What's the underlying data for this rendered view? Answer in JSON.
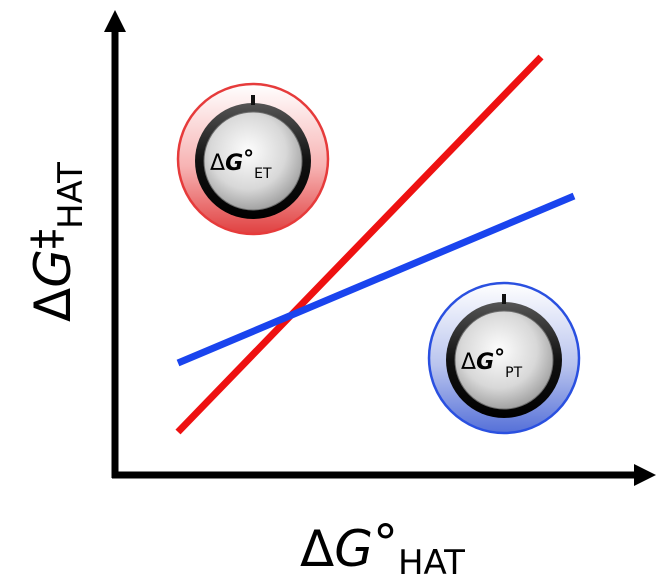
{
  "axes": {
    "x_label": {
      "delta": "Δ",
      "symbol": "G",
      "degree": "°",
      "subscript": "HAT"
    },
    "y_label": {
      "delta": "Δ",
      "symbol": "G",
      "dagger": "‡",
      "subscript": "HAT"
    }
  },
  "lines": [
    {
      "name": "red-line",
      "color": "#ee1111"
    },
    {
      "name": "blue-line",
      "color": "#1a44ee"
    }
  ],
  "knobs": {
    "et": {
      "delta": "Δ",
      "symbol": "G",
      "degree": "°",
      "subscript": "ET",
      "ring_color": "#e63b3b"
    },
    "pt": {
      "delta": "Δ",
      "symbol": "G",
      "degree": "°",
      "subscript": "PT",
      "ring_color": "#2a50e0"
    }
  },
  "colors": {
    "axis": "#000000"
  }
}
